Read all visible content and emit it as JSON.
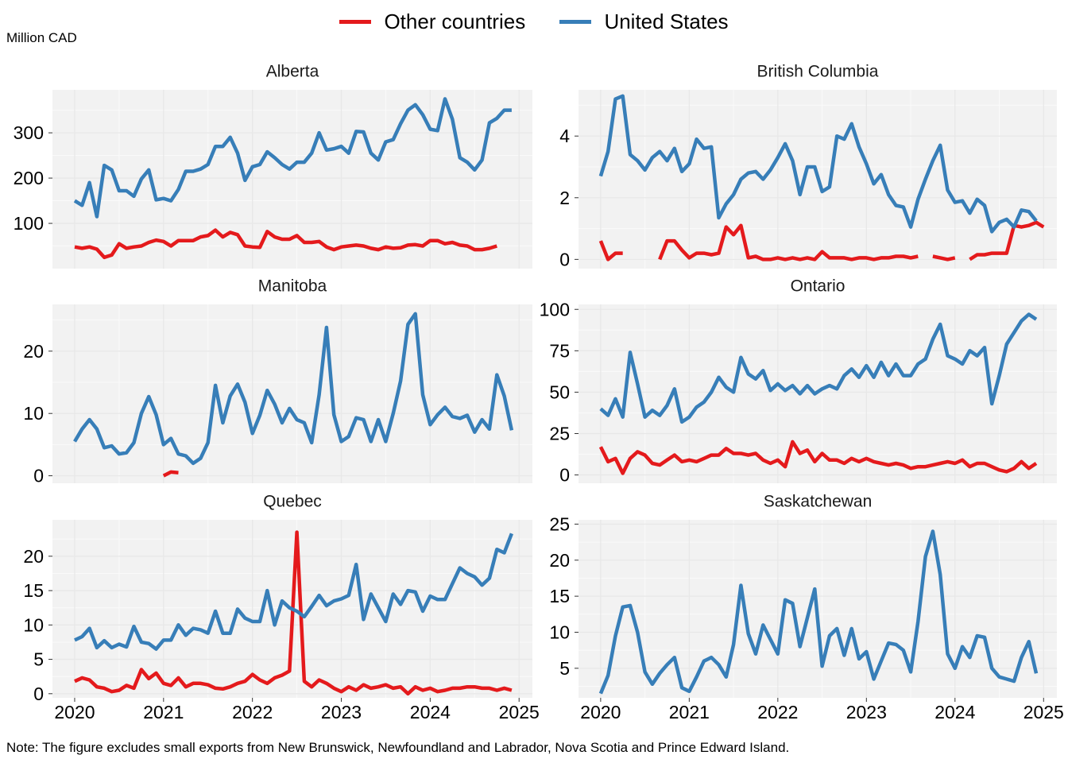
{
  "unit_label": "Million CAD",
  "note": "Note: The figure excludes small exports from New Brunswick, Newfoundland and Labrador, Nova Scotia and Prince Edward Island.",
  "legend": [
    {
      "name": "Other countries",
      "color": "#e41a1c"
    },
    {
      "name": "United States",
      "color": "#377eb8"
    }
  ],
  "chart_data": {
    "type": "line",
    "layout": "facet-grid 3x2",
    "grid": true,
    "legend_position": "top",
    "x_ticks": [
      "2020",
      "2021",
      "2022",
      "2023",
      "2024",
      "2025"
    ],
    "x_range": [
      2019.75,
      2025.15
    ],
    "panels": [
      {
        "title": "Alberta",
        "yticks": [
          100,
          200,
          300
        ],
        "ylim": [
          0,
          395
        ],
        "series": [
          {
            "name": "Other countries",
            "start": 2020.0,
            "values": [
              48,
              45,
              48,
              43,
              25,
              30,
              55,
              45,
              48,
              50,
              58,
              63,
              60,
              50,
              62,
              62,
              62,
              70,
              73,
              85,
              70,
              80,
              75,
              50,
              48,
              47,
              82,
              70,
              65,
              65,
              73,
              58,
              58,
              60,
              48,
              42,
              48,
              50,
              52,
              50,
              45,
              42,
              48,
              45,
              46,
              52,
              53,
              50,
              62,
              62,
              55,
              58,
              52,
              50,
              42,
              42,
              45,
              50
            ]
          },
          {
            "name": "United States",
            "start": 2020.0,
            "values": [
              150,
              140,
              190,
              115,
              228,
              218,
              172,
              172,
              160,
              198,
              218,
              152,
              155,
              150,
              175,
              215,
              215,
              220,
              230,
              270,
              270,
              290,
              255,
              195,
              225,
              230,
              258,
              245,
              230,
              220,
              235,
              235,
              255,
              300,
              262,
              265,
              270,
              255,
              303,
              302,
              255,
              240,
              280,
              285,
              320,
              350,
              362,
              340,
              308,
              305,
              375,
              330,
              245,
              235,
              218,
              240,
              322,
              332,
              350,
              350
            ]
          }
        ]
      },
      {
        "title": "British Columbia",
        "yticks": [
          0,
          2,
          4
        ],
        "ylim": [
          -0.3,
          5.5
        ],
        "series": [
          {
            "name": "Other countries",
            "start": 2020.0,
            "values": [
              0.6,
              0.0,
              0.2,
              0.2,
              null,
              null,
              null,
              null,
              0.0,
              0.6,
              0.6,
              0.3,
              0.05,
              0.2,
              0.2,
              0.15,
              0.2,
              1.05,
              0.8,
              1.1,
              0.05,
              0.1,
              0.0,
              0.0,
              0.05,
              0.0,
              0.05,
              0.0,
              0.05,
              0.0,
              0.25,
              0.05,
              0.05,
              0.05,
              0.0,
              0.05,
              0.05,
              0.0,
              0.05,
              0.05,
              0.1,
              0.1,
              0.05,
              0.1,
              null,
              0.1,
              0.05,
              0.0,
              0.05,
              null,
              0.0,
              0.15,
              0.15,
              0.2,
              0.2,
              0.2,
              1.1,
              1.05,
              1.1,
              1.2,
              1.05
            ]
          },
          {
            "name": "United States",
            "start": 2020.0,
            "values": [
              2.7,
              3.5,
              5.2,
              5.3,
              3.4,
              3.2,
              2.9,
              3.3,
              3.5,
              3.2,
              3.6,
              2.85,
              3.1,
              3.9,
              3.6,
              3.65,
              1.35,
              1.8,
              2.1,
              2.6,
              2.8,
              2.85,
              2.6,
              2.9,
              3.3,
              3.75,
              3.2,
              2.1,
              3.0,
              3.0,
              2.2,
              2.35,
              4.0,
              3.9,
              4.4,
              3.65,
              3.1,
              2.45,
              2.75,
              2.1,
              1.75,
              1.7,
              1.05,
              1.95,
              2.6,
              3.2,
              3.7,
              2.25,
              1.85,
              1.9,
              1.5,
              1.95,
              1.75,
              0.9,
              1.2,
              1.3,
              1.05,
              1.6,
              1.55,
              1.25
            ]
          }
        ]
      },
      {
        "title": "Manitoba",
        "yticks": [
          0,
          10,
          20
        ],
        "ylim": [
          -1.2,
          27.5
        ],
        "series": [
          {
            "name": "Other countries",
            "start": 2020.0,
            "values": [
              null,
              null,
              null,
              null,
              null,
              null,
              null,
              null,
              null,
              null,
              null,
              null,
              0.0,
              0.6,
              0.5
            ]
          },
          {
            "name": "United States",
            "start": 2020.0,
            "values": [
              5.5,
              7.5,
              9.0,
              7.5,
              4.5,
              4.8,
              3.5,
              3.7,
              5.3,
              10.0,
              12.7,
              9.8,
              5.0,
              6.0,
              3.5,
              3.2,
              2.0,
              2.8,
              5.3,
              14.5,
              8.5,
              12.8,
              14.7,
              11.8,
              6.8,
              9.7,
              13.7,
              11.5,
              8.5,
              10.8,
              9.0,
              8.5,
              5.3,
              13.0,
              23.8,
              9.8,
              5.5,
              6.3,
              9.3,
              9.0,
              5.5,
              9.0,
              5.5,
              10.0,
              15.2,
              24.3,
              26.0,
              13.0,
              8.2,
              9.8,
              11.0,
              9.5,
              9.2,
              9.7,
              7.0,
              9.0,
              7.5,
              16.2,
              12.8,
              7.3
            ]
          }
        ]
      },
      {
        "title": "Ontario",
        "yticks": [
          0,
          25,
          50,
          75,
          100
        ],
        "ylim": [
          -5,
          103
        ],
        "series": [
          {
            "name": "Other countries",
            "start": 2020.0,
            "values": [
              17,
              8,
              10,
              1,
              10,
              14,
              12,
              7,
              6,
              9,
              12,
              8,
              9,
              8,
              10,
              12,
              12,
              16,
              13,
              13,
              12,
              13,
              9,
              7,
              9,
              5,
              20,
              13,
              15,
              8,
              13,
              9,
              9,
              7,
              10,
              8,
              10,
              8,
              7,
              6,
              7,
              6,
              4,
              5,
              5,
              6,
              7,
              8,
              7,
              9,
              5,
              7,
              7,
              5,
              3,
              2,
              4,
              8,
              4,
              7
            ]
          },
          {
            "name": "United States",
            "start": 2020.0,
            "values": [
              40,
              36,
              46,
              35,
              74,
              55,
              35,
              39,
              36,
              42,
              52,
              32,
              35,
              41,
              44,
              50,
              59,
              53,
              50,
              71,
              61,
              58,
              63,
              51,
              55,
              51,
              54,
              49,
              54,
              49,
              52,
              54,
              52,
              60,
              64,
              59,
              66,
              59,
              68,
              60,
              67,
              60,
              60,
              67,
              70,
              82,
              91,
              72,
              70,
              67,
              75,
              72,
              77,
              43,
              60,
              79,
              86,
              93,
              97,
              94
            ]
          }
        ]
      },
      {
        "title": "Quebec",
        "yticks": [
          0,
          5,
          10,
          15,
          20
        ],
        "ylim": [
          -0.6,
          25.3
        ],
        "series": [
          {
            "name": "Other countries",
            "start": 2020.0,
            "values": [
              1.8,
              2.3,
              2.0,
              1.0,
              0.8,
              0.3,
              0.5,
              1.2,
              0.8,
              3.5,
              2.2,
              3.0,
              1.5,
              1.2,
              2.3,
              1.0,
              1.5,
              1.5,
              1.3,
              0.8,
              0.7,
              1.0,
              1.5,
              1.8,
              2.8,
              2.0,
              1.5,
              2.3,
              2.7,
              3.3,
              23.5,
              1.8,
              1.0,
              2.0,
              1.5,
              0.8,
              0.3,
              1.0,
              0.5,
              1.3,
              0.8,
              1.0,
              1.3,
              0.8,
              1.0,
              0.0,
              1.0,
              0.5,
              0.8,
              0.3,
              0.5,
              0.8,
              0.8,
              1.0,
              1.0,
              0.8,
              0.8,
              0.5,
              0.8,
              0.5
            ]
          },
          {
            "name": "United States",
            "start": 2020.0,
            "values": [
              7.8,
              8.3,
              9.5,
              6.7,
              7.7,
              6.7,
              7.2,
              6.8,
              9.8,
              7.5,
              7.3,
              6.5,
              7.8,
              7.8,
              10.0,
              8.5,
              9.5,
              9.3,
              8.8,
              12.0,
              8.8,
              8.8,
              12.3,
              11.0,
              10.5,
              10.5,
              15.0,
              10.0,
              13.5,
              12.5,
              12.0,
              11.2,
              12.7,
              14.3,
              12.8,
              13.5,
              13.8,
              14.3,
              18.8,
              10.8,
              14.5,
              12.5,
              10.5,
              14.5,
              13.0,
              15.0,
              14.8,
              12.0,
              14.2,
              13.7,
              13.7,
              16.0,
              18.3,
              17.5,
              17.0,
              15.8,
              16.8,
              21.0,
              20.5,
              23.3
            ]
          }
        ]
      },
      {
        "title": "Saskatchewan",
        "yticks": [
          5,
          10,
          15,
          20,
          25
        ],
        "ylim": [
          0.9,
          25.6
        ],
        "series": [
          {
            "name": "United States",
            "start": 2020.0,
            "values": [
              1.5,
              4.0,
              9.5,
              13.5,
              13.7,
              10.0,
              4.5,
              2.8,
              4.3,
              5.5,
              6.5,
              2.3,
              1.8,
              3.8,
              6.0,
              6.5,
              5.5,
              3.8,
              8.3,
              16.5,
              9.8,
              7.0,
              11.0,
              9.0,
              7.0,
              14.5,
              14.0,
              8.0,
              12.0,
              16.0,
              5.3,
              9.5,
              10.5,
              6.8,
              10.5,
              6.3,
              7.3,
              3.5,
              6.0,
              8.5,
              8.3,
              7.5,
              4.5,
              11.5,
              20.5,
              24.0,
              18.0,
              7.0,
              5.0,
              8.0,
              6.5,
              9.5,
              9.3,
              5.0,
              3.8,
              3.5,
              3.2,
              6.5,
              8.7,
              4.3
            ]
          }
        ]
      }
    ]
  }
}
